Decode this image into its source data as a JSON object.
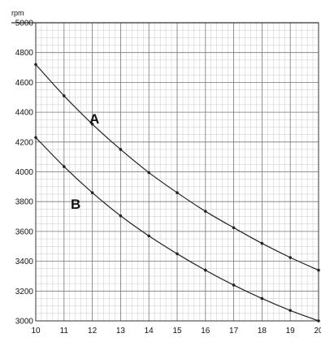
{
  "chart_data": {
    "type": "line",
    "ylabel": "rpm",
    "xlabel": "",
    "xlim": [
      10,
      20
    ],
    "ylim": [
      3000,
      5000
    ],
    "x_ticks": [
      10,
      11,
      12,
      13,
      14,
      15,
      16,
      17,
      18,
      19,
      20
    ],
    "x_tick_labels": [
      "10",
      "11",
      "12",
      "13",
      "14",
      "15",
      "16",
      "17",
      "18",
      "19",
      "20"
    ],
    "y_ticks": [
      3000,
      3200,
      3400,
      3600,
      3800,
      4000,
      4200,
      4400,
      4600,
      4800,
      5000
    ],
    "y_tick_labels": [
      "3000",
      "3200",
      "3400",
      "3600",
      "3800",
      "4000",
      "4200",
      "4400",
      "4600",
      "4800",
      "5000"
    ],
    "grid": true,
    "colors": {
      "grid_minor": "#c8c8c8",
      "grid_major": "#7a7a7a",
      "line": "#222222",
      "background": "#ffffff"
    },
    "series": [
      {
        "name": "A",
        "x": [
          10,
          11,
          12,
          13,
          14,
          15,
          16,
          17,
          18,
          19,
          20
        ],
        "values": [
          4720,
          4510,
          4320,
          4150,
          3995,
          3860,
          3735,
          3625,
          3520,
          3425,
          3340
        ]
      },
      {
        "name": "B",
        "x": [
          10,
          11,
          12,
          13,
          14,
          15,
          16,
          17,
          18,
          19,
          20
        ],
        "values": [
          4230,
          4035,
          3860,
          3705,
          3570,
          3450,
          3340,
          3240,
          3150,
          3070,
          3000
        ]
      }
    ]
  }
}
